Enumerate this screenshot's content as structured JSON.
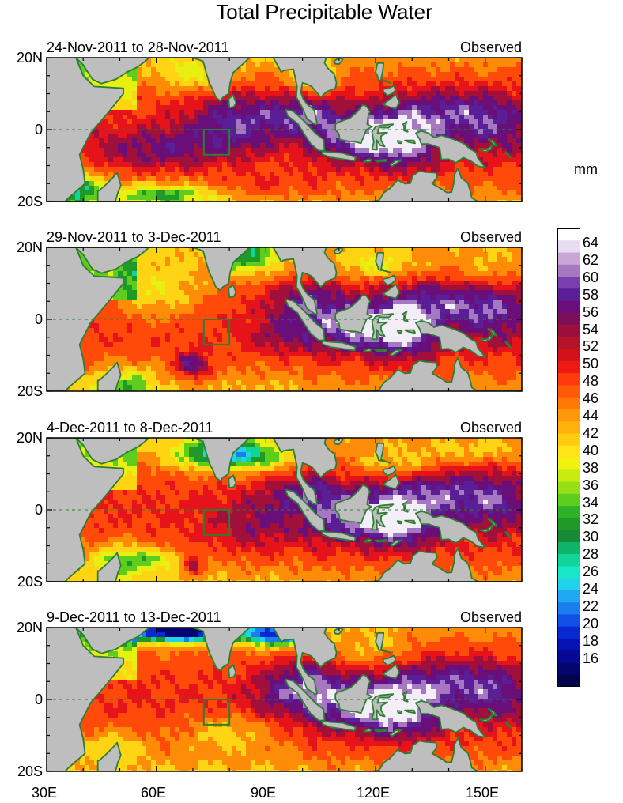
{
  "title": "Total Precipitable Water",
  "units_label": "mm",
  "map": {
    "x_ticks": [
      "30E",
      "60E",
      "90E",
      "120E",
      "150E"
    ],
    "lat_labels": {
      "north": "20N",
      "equator": "0",
      "south": "20S"
    },
    "extent": {
      "lon_min": 30,
      "lon_max": 160,
      "lat_min": -20,
      "lat_max": 20
    },
    "analysis_box": {
      "lon_min": 73,
      "lon_max": 80,
      "lat_min": -7,
      "lat_max": 0
    }
  },
  "panels": [
    {
      "period": "24-Nov-2011 to 28-Nov-2011",
      "label": "Observed"
    },
    {
      "period": "29-Nov-2011 to 3-Dec-2011",
      "label": "Observed"
    },
    {
      "period": "4-Dec-2011 to 8-Dec-2011",
      "label": "Observed"
    },
    {
      "period": "9-Dec-2011 to 13-Dec-2011",
      "label": "Observed"
    }
  ],
  "colorbar": {
    "labels": [
      "64",
      "62",
      "60",
      "58",
      "56",
      "54",
      "52",
      "50",
      "48",
      "46",
      "44",
      "42",
      "40",
      "38",
      "36",
      "34",
      "32",
      "30",
      "28",
      "26",
      "24",
      "22",
      "20",
      "18",
      "16"
    ],
    "colors": [
      "#ffffff",
      "#e8dcf0",
      "#c9a6d6",
      "#a678c2",
      "#7a3fae",
      "#5a1f96",
      "#6a0f7a",
      "#7d0f5a",
      "#9c0f3c",
      "#b41428",
      "#d2121a",
      "#ee1a12",
      "#ff3a0c",
      "#ff5a08",
      "#ff7a04",
      "#ff9808",
      "#ffb20c",
      "#ffcc10",
      "#ffe416",
      "#f2f20e",
      "#c8ec10",
      "#98de14",
      "#5ece1e",
      "#2eb22a",
      "#1f9a28",
      "#188a36",
      "#10b468",
      "#10d49a",
      "#18e6c8",
      "#20d2ec",
      "#20a8f2",
      "#1a7ef0",
      "#1050e6",
      "#0a28d2",
      "#0612b4",
      "#060896",
      "#040670",
      "#02044c"
    ]
  }
}
